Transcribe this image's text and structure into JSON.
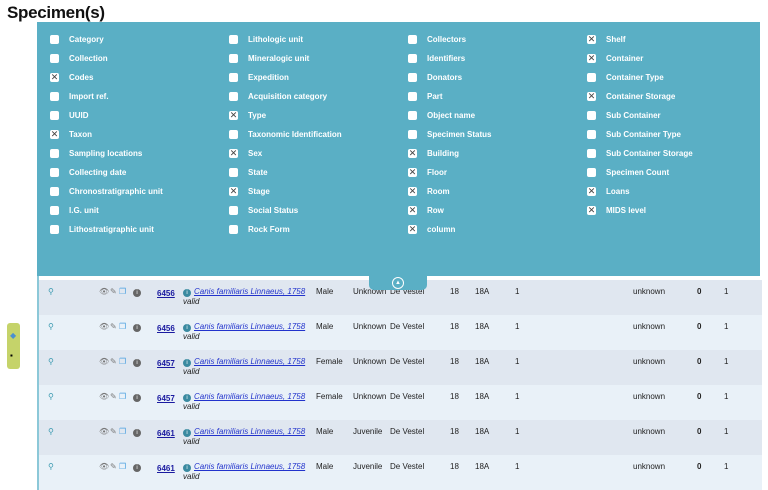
{
  "title": "Specimen(s)",
  "columns_options": [
    [
      {
        "label": "Category",
        "checked": false
      },
      {
        "label": "Collection",
        "checked": false
      },
      {
        "label": "Codes",
        "checked": true
      },
      {
        "label": "Import ref.",
        "checked": false
      },
      {
        "label": "UUID",
        "checked": false
      },
      {
        "label": "Taxon",
        "checked": true
      },
      {
        "label": "Sampling locations",
        "checked": false
      },
      {
        "label": "Collecting date",
        "checked": false
      },
      {
        "label": "Chronostratigraphic unit",
        "checked": false
      },
      {
        "label": "I.G. unit",
        "checked": false
      },
      {
        "label": "Lithostratigraphic unit",
        "checked": false
      }
    ],
    [
      {
        "label": "Lithologic unit",
        "checked": false
      },
      {
        "label": "Mineralogic unit",
        "checked": false
      },
      {
        "label": "Expedition",
        "checked": false
      },
      {
        "label": "Acquisition category",
        "checked": false
      },
      {
        "label": "Type",
        "checked": true
      },
      {
        "label": "Taxonomic Identification",
        "checked": false
      },
      {
        "label": "Sex",
        "checked": true
      },
      {
        "label": "State",
        "checked": false
      },
      {
        "label": "Stage",
        "checked": true
      },
      {
        "label": "Social Status",
        "checked": false
      },
      {
        "label": "Rock Form",
        "checked": false
      }
    ],
    [
      {
        "label": "Collectors",
        "checked": false
      },
      {
        "label": "Identifiers",
        "checked": false
      },
      {
        "label": "Donators",
        "checked": false
      },
      {
        "label": "Part",
        "checked": false
      },
      {
        "label": "Object name",
        "checked": false
      },
      {
        "label": "Specimen Status",
        "checked": false
      },
      {
        "label": "Building",
        "checked": true
      },
      {
        "label": "Floor",
        "checked": true
      },
      {
        "label": "Room",
        "checked": true
      },
      {
        "label": "Row",
        "checked": true
      },
      {
        "label": "column",
        "checked": true
      }
    ],
    [
      {
        "label": "Shelf",
        "checked": true
      },
      {
        "label": "Container",
        "checked": true
      },
      {
        "label": "Container Type",
        "checked": false
      },
      {
        "label": "Container Storage",
        "checked": true
      },
      {
        "label": "Sub Container",
        "checked": false
      },
      {
        "label": "Sub Container Type",
        "checked": false
      },
      {
        "label": "Sub Container Storage",
        "checked": false
      },
      {
        "label": "Specimen Count",
        "checked": false
      },
      {
        "label": "Loans",
        "checked": true
      },
      {
        "label": "MIDS level",
        "checked": true
      }
    ]
  ],
  "rows": [
    {
      "code": "6456",
      "taxon": "Canis familiaris Linnaeus, 1758",
      "status": "valid",
      "sex": "Male",
      "stage": "Unknown",
      "building": "De Vestel",
      "floor": "18",
      "room": "18A",
      "row": "1",
      "container": "unknown",
      "loans": "0",
      "mids": "1"
    },
    {
      "code": "6456",
      "taxon": "Canis familiaris Linnaeus, 1758",
      "status": "valid",
      "sex": "Male",
      "stage": "Unknown",
      "building": "De Vestel",
      "floor": "18",
      "room": "18A",
      "row": "1",
      "container": "unknown",
      "loans": "0",
      "mids": "1"
    },
    {
      "code": "6457",
      "taxon": "Canis familiaris Linnaeus, 1758",
      "status": "valid",
      "sex": "Female",
      "stage": "Unknown",
      "building": "De Vestel",
      "floor": "18",
      "room": "18A",
      "row": "1",
      "container": "unknown",
      "loans": "0",
      "mids": "1"
    },
    {
      "code": "6457",
      "taxon": "Canis familiaris Linnaeus, 1758",
      "status": "valid",
      "sex": "Female",
      "stage": "Unknown",
      "building": "De Vestel",
      "floor": "18",
      "room": "18A",
      "row": "1",
      "container": "unknown",
      "loans": "0",
      "mids": "1"
    },
    {
      "code": "6461",
      "taxon": "Canis familiaris Linnaeus, 1758",
      "status": "valid",
      "sex": "Male",
      "stage": "Juvenile",
      "building": "De Vestel",
      "floor": "18",
      "room": "18A",
      "row": "1",
      "container": "unknown",
      "loans": "0",
      "mids": "1"
    },
    {
      "code": "6461",
      "taxon": "Canis familiaris Linnaeus, 1758",
      "status": "valid",
      "sex": "Male",
      "stage": "Juvenile",
      "building": "De Vestel",
      "floor": "18",
      "room": "18A",
      "row": "1",
      "container": "unknown",
      "loans": "0",
      "mids": "1"
    }
  ],
  "colors": {
    "panel": "#5aafc5",
    "row_odd": "#e0e7f0",
    "row_even": "#e9f1f8",
    "side": "#c5d36a"
  }
}
